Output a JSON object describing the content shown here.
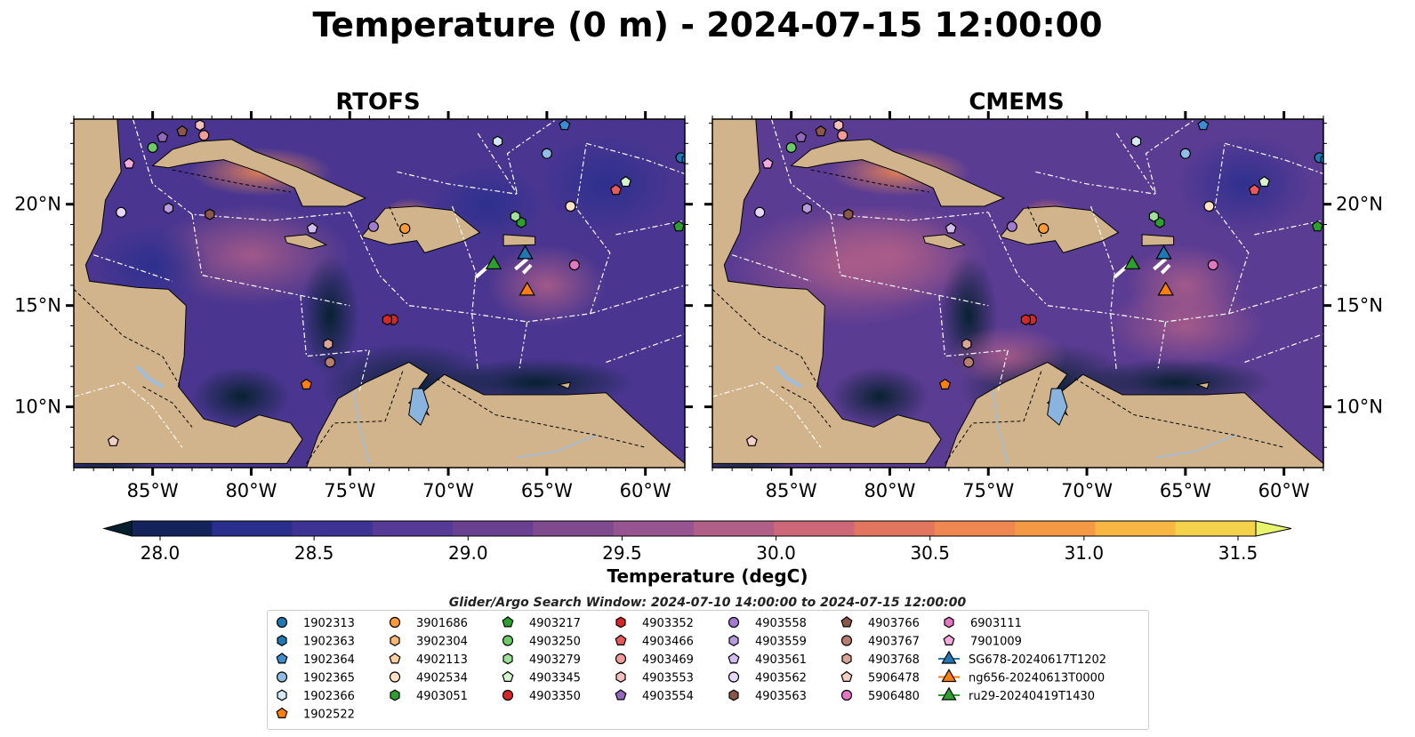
{
  "title": "Temperature (0 m) - 2024-07-15 12:00:00",
  "panels": [
    {
      "title": "RTOFS"
    },
    {
      "title": "CMEMS"
    }
  ],
  "lon_ticks": [
    "85°W",
    "80°W",
    "75°W",
    "70°W",
    "65°W",
    "60°W"
  ],
  "lat_ticks": [
    "20°N",
    "15°N",
    "10°N"
  ],
  "lon_values": [
    -85,
    -80,
    -75,
    -70,
    -65,
    -60
  ],
  "lat_values": [
    20,
    15,
    10
  ],
  "map_extent": {
    "lon": [
      -89,
      -58
    ],
    "lat": [
      7,
      24.2
    ]
  },
  "colorbar": {
    "label": "Temperature (degC)",
    "ticks": [
      "28.0",
      "28.5",
      "29.0",
      "29.5",
      "30.0",
      "30.5",
      "31.0",
      "31.5"
    ],
    "tick_values": [
      28.0,
      28.5,
      29.0,
      29.5,
      30.0,
      30.5,
      31.0,
      31.5
    ],
    "range": [
      28.0,
      31.5
    ],
    "colors": [
      "#04202c",
      "#14245a",
      "#2a2f8e",
      "#3d3394",
      "#553a96",
      "#6a4190",
      "#7f4a8e",
      "#965490",
      "#b05f88",
      "#cc6878",
      "#e1755e",
      "#ee8850",
      "#f59a44",
      "#f8b743",
      "#f4d24c",
      "#e8f56c"
    ]
  },
  "search_window": "Glider/Argo Search Window: 2024-07-10 14:00:00 to 2024-07-15 12:00:00",
  "legend": {
    "columns": [
      [
        {
          "label": "1902313",
          "marker": "circle",
          "color": "#1f77b4"
        },
        {
          "label": "1902363",
          "marker": "hexagon",
          "color": "#1f77b4"
        },
        {
          "label": "1902364",
          "marker": "pentagon",
          "color": "#3b8dd0"
        },
        {
          "label": "1902365",
          "marker": "circle",
          "color": "#8fbde6"
        },
        {
          "label": "1902366",
          "marker": "hexagon",
          "color": "#d2e9f8"
        },
        {
          "label": "1902522",
          "marker": "pentagon",
          "color": "#ff7f0e"
        }
      ],
      [
        {
          "label": "3901686",
          "marker": "circle",
          "color": "#ff9a33"
        },
        {
          "label": "3902304",
          "marker": "hexagon",
          "color": "#ffb873"
        },
        {
          "label": "4902113",
          "marker": "pentagon",
          "color": "#ffcf9e"
        },
        {
          "label": "4902534",
          "marker": "circle",
          "color": "#ffe2c4"
        },
        {
          "label": "4903051",
          "marker": "hexagon",
          "color": "#2ca02c"
        }
      ],
      [
        {
          "label": "4903217",
          "marker": "pentagon",
          "color": "#2ca02c"
        },
        {
          "label": "4903250",
          "marker": "circle",
          "color": "#6acc64"
        },
        {
          "label": "4903279",
          "marker": "hexagon",
          "color": "#9ee29a"
        },
        {
          "label": "4903345",
          "marker": "pentagon",
          "color": "#d4f5cc"
        },
        {
          "label": "4903350",
          "marker": "circle",
          "color": "#d62728"
        }
      ],
      [
        {
          "label": "4903352",
          "marker": "hexagon",
          "color": "#d62728"
        },
        {
          "label": "4903466",
          "marker": "pentagon",
          "color": "#e8595a"
        },
        {
          "label": "4903469",
          "marker": "circle",
          "color": "#f49a98"
        },
        {
          "label": "4903553",
          "marker": "hexagon",
          "color": "#f6c0bd"
        },
        {
          "label": "4903554",
          "marker": "pentagon",
          "color": "#9467bd"
        }
      ],
      [
        {
          "label": "4903558",
          "marker": "circle",
          "color": "#a27bd0"
        },
        {
          "label": "4903559",
          "marker": "hexagon",
          "color": "#b99ae0"
        },
        {
          "label": "4903561",
          "marker": "pentagon",
          "color": "#d2bdee"
        },
        {
          "label": "4903562",
          "marker": "circle",
          "color": "#e6d8f6"
        },
        {
          "label": "4903563",
          "marker": "hexagon",
          "color": "#8c564b"
        }
      ],
      [
        {
          "label": "4903766",
          "marker": "pentagon",
          "color": "#8c564b"
        },
        {
          "label": "4903767",
          "marker": "circle",
          "color": "#b77d70"
        },
        {
          "label": "4903768",
          "marker": "hexagon",
          "color": "#d8a596"
        },
        {
          "label": "5906478",
          "marker": "pentagon",
          "color": "#f2d0c4"
        },
        {
          "label": "5906480",
          "marker": "circle",
          "color": "#e377c2"
        }
      ],
      [
        {
          "label": "6903111",
          "marker": "hexagon",
          "color": "#e377c2"
        },
        {
          "label": "7901009",
          "marker": "pentagon",
          "color": "#f4a8dc"
        },
        {
          "label": "SG678-20240617T1202",
          "marker": "triangle",
          "color": "#1f77b4"
        },
        {
          "label": "ng656-20240613T0000",
          "marker": "triangle",
          "color": "#ff7f0e"
        },
        {
          "label": "ru29-20240419T1430",
          "marker": "triangle",
          "color": "#2ca02c"
        }
      ]
    ]
  },
  "floats": [
    {
      "id": "1902313",
      "lon": -58.2,
      "lat": 22.3
    },
    {
      "id": "1902363",
      "lon": -57.9,
      "lat": 22.2
    },
    {
      "id": "1902364",
      "lon": -64.1,
      "lat": 23.9
    },
    {
      "id": "1902365",
      "lon": -65.0,
      "lat": 22.5
    },
    {
      "id": "1902366",
      "lon": -67.5,
      "lat": 23.1
    },
    {
      "id": "1902522",
      "lon": -77.2,
      "lat": 11.1
    },
    {
      "id": "3901686",
      "lon": -72.2,
      "lat": 18.8
    },
    {
      "id": "4902534",
      "lon": -63.8,
      "lat": 19.9
    },
    {
      "id": "4903051",
      "lon": -66.3,
      "lat": 19.1
    },
    {
      "id": "4903217",
      "lon": -58.3,
      "lat": 18.9
    },
    {
      "id": "4903250",
      "lon": -85.0,
      "lat": 22.8
    },
    {
      "id": "4903279",
      "lon": -66.6,
      "lat": 19.4
    },
    {
      "id": "4903345",
      "lon": -61.0,
      "lat": 21.1
    },
    {
      "id": "4903350",
      "lon": -72.8,
      "lat": 14.3
    },
    {
      "id": "4903352",
      "lon": -73.1,
      "lat": 14.3
    },
    {
      "id": "4903466",
      "lon": -61.5,
      "lat": 20.7
    },
    {
      "id": "4903469",
      "lon": -82.4,
      "lat": 23.4
    },
    {
      "id": "4903553",
      "lon": -82.6,
      "lat": 23.9
    },
    {
      "id": "4903554",
      "lon": -84.5,
      "lat": 23.3
    },
    {
      "id": "4903558",
      "lon": -73.8,
      "lat": 18.9
    },
    {
      "id": "4903559",
      "lon": -84.2,
      "lat": 19.8
    },
    {
      "id": "4903561",
      "lon": -76.9,
      "lat": 18.8
    },
    {
      "id": "4903562",
      "lon": -86.6,
      "lat": 19.6
    },
    {
      "id": "4903563",
      "lon": -82.1,
      "lat": 19.5
    },
    {
      "id": "4903766",
      "lon": -83.5,
      "lat": 23.6
    },
    {
      "id": "4903767",
      "lon": -76.0,
      "lat": 12.2
    },
    {
      "id": "4903768",
      "lon": -76.1,
      "lat": 13.1
    },
    {
      "id": "5906478",
      "lon": -87.0,
      "lat": 8.3
    },
    {
      "id": "5906480",
      "lon": -63.6,
      "lat": 17.0
    },
    {
      "id": "7901009",
      "lon": -86.2,
      "lat": 22.0
    }
  ],
  "gliders": [
    {
      "id": "SG678-20240617T1202",
      "lon": -66.1,
      "lat": 17.6
    },
    {
      "id": "ng656-20240613T0000",
      "lon": -66.0,
      "lat": 15.8
    },
    {
      "id": "ru29-20240419T1430",
      "lon": -67.7,
      "lat": 17.1
    }
  ]
}
